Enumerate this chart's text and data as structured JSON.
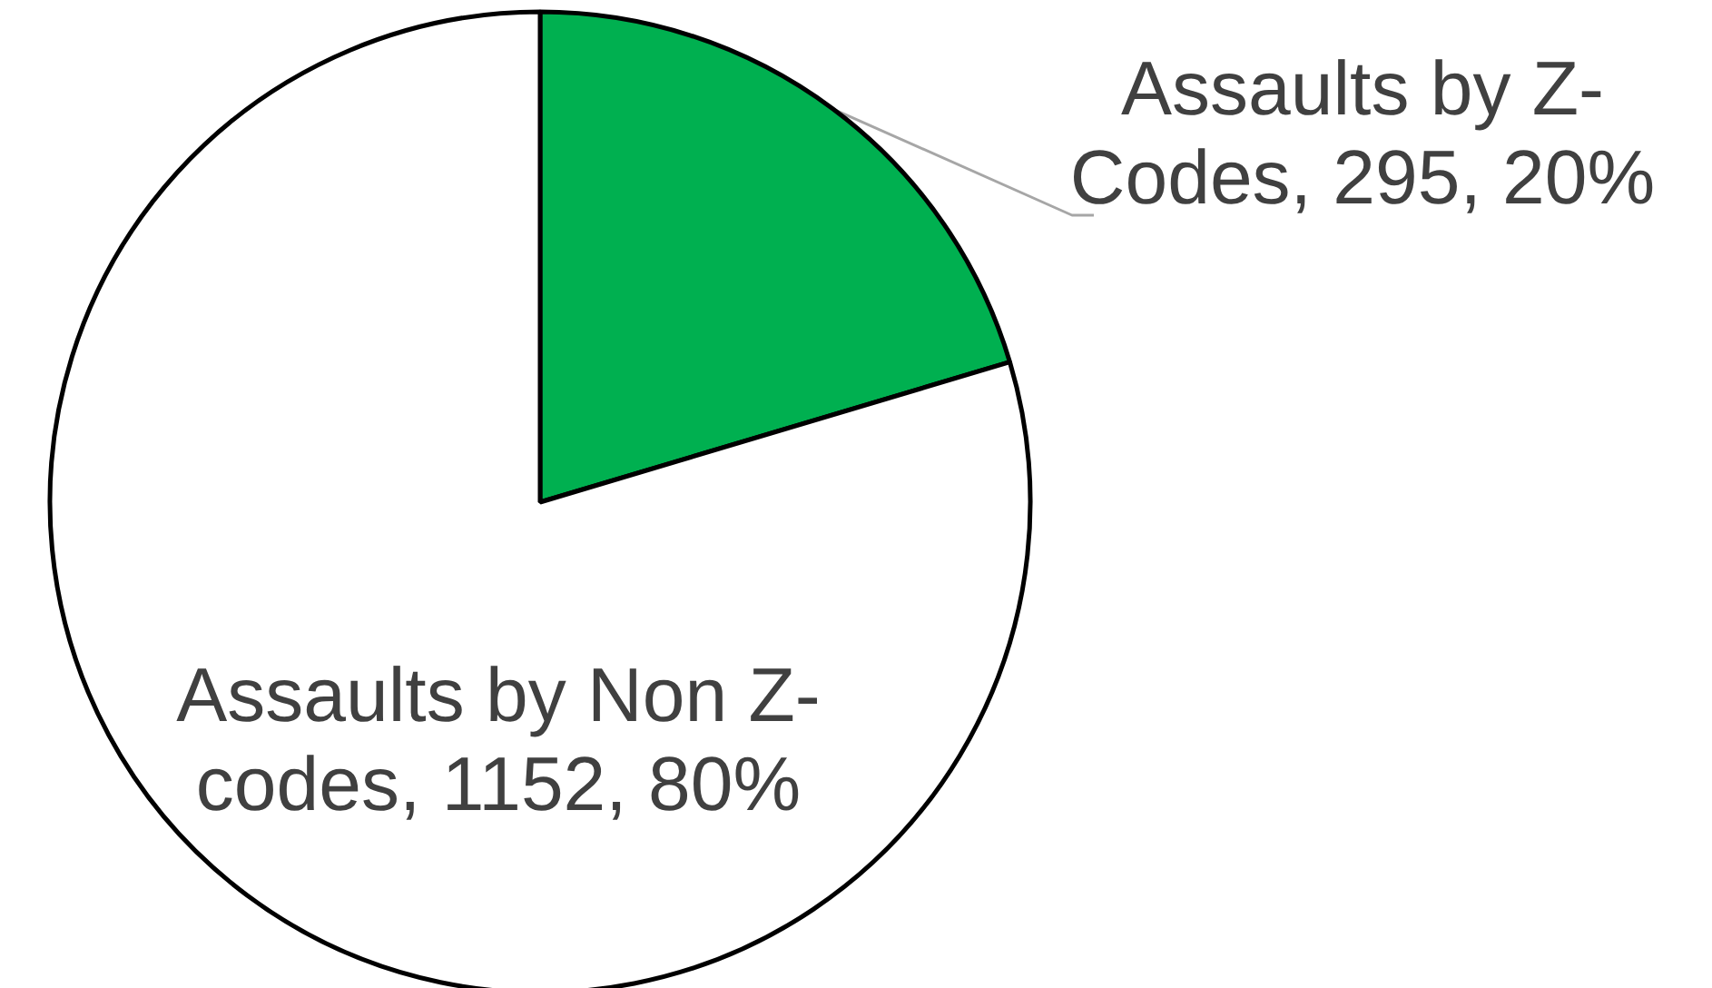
{
  "chart_data": {
    "type": "pie",
    "categories": [
      "Assaults by Z-Codes",
      "Assaults by Non Z-codes"
    ],
    "values": [
      295,
      1152
    ],
    "colors": [
      "#00b050",
      "#ffffff"
    ],
    "value_labels": [
      "295, 20%",
      "1152, 80%"
    ]
  }
}
